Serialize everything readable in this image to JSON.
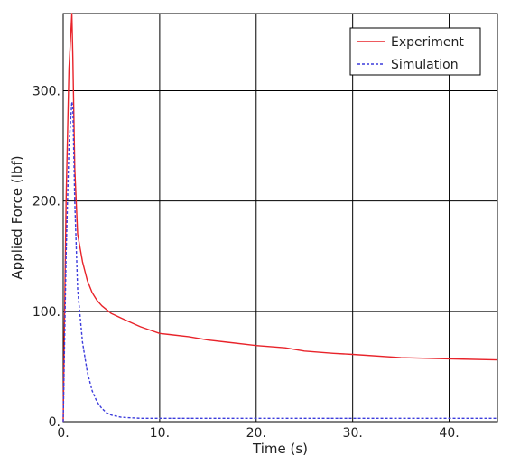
{
  "chart_data": {
    "type": "line",
    "title": "",
    "xlabel": "Time (s)",
    "ylabel": "Applied Force (lbf)",
    "xlim": [
      0,
      45
    ],
    "ylim": [
      0,
      370
    ],
    "xticks": [
      0,
      10,
      20,
      30,
      40
    ],
    "xtick_labels": [
      "0.",
      "10.",
      "20.",
      "30.",
      "40."
    ],
    "yticks": [
      0,
      100,
      200,
      300
    ],
    "ytick_labels": [
      "0.",
      "100.",
      "200.",
      "300."
    ],
    "grid": true,
    "legend_position": "top-right",
    "series": [
      {
        "name": "Experiment",
        "color": "#e8232a",
        "style": "solid",
        "x": [
          0.0,
          0.3,
          0.6,
          0.9,
          1.0,
          1.2,
          1.5,
          2.0,
          2.5,
          3.0,
          3.5,
          4.0,
          5.0,
          6.0,
          7.0,
          8.0,
          9.0,
          10.0,
          11.0,
          13.0,
          15.0,
          17.0,
          20.0,
          23.0,
          25.0,
          28.0,
          30.0,
          35.0,
          40.0,
          45.0
        ],
        "y": [
          0,
          200,
          320,
          370,
          330,
          230,
          170,
          145,
          128,
          117,
          110,
          105,
          98,
          94,
          90,
          86,
          83,
          80,
          79,
          77,
          74,
          72,
          69,
          67,
          64,
          62,
          61,
          58,
          57,
          56
        ]
      },
      {
        "name": "Simulation",
        "color": "#3c3cdc",
        "style": "dashed",
        "x": [
          0.0,
          0.3,
          0.6,
          0.9,
          1.0,
          1.2,
          1.5,
          2.0,
          2.5,
          3.0,
          3.5,
          4.0,
          4.5,
          5.0,
          6.0,
          8.0,
          10.0,
          15.0,
          20.0,
          30.0,
          45.0
        ],
        "y": [
          0,
          150,
          250,
          290,
          285,
          200,
          120,
          72,
          45,
          28,
          18,
          12,
          8,
          6,
          4,
          3,
          3,
          3,
          3,
          3,
          3
        ]
      }
    ]
  }
}
